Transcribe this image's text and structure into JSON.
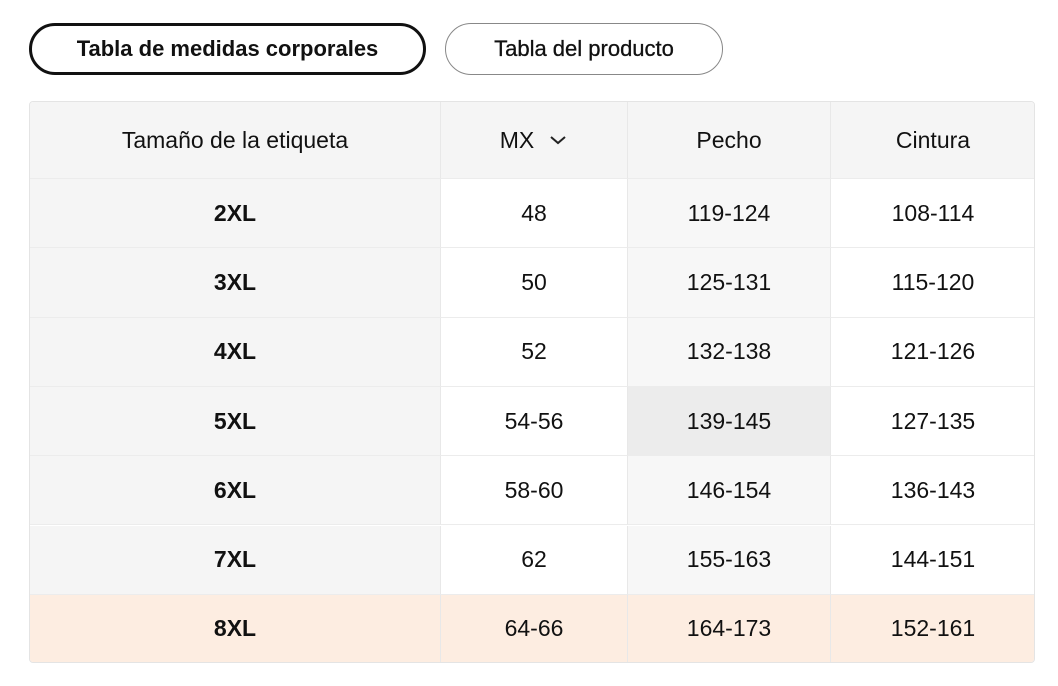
{
  "tabs": [
    "Tabla de medidas corporales",
    "Tabla del producto"
  ],
  "table": {
    "headers": [
      "Tamaño de la etiqueta",
      "MX",
      "Pecho",
      "Cintura"
    ],
    "rows": [
      [
        "2XL",
        "48",
        "119-124",
        "108-114"
      ],
      [
        "3XL",
        "50",
        "125-131",
        "115-120"
      ],
      [
        "4XL",
        "52",
        "132-138",
        "121-126"
      ],
      [
        "5XL",
        "54-56",
        "139-145",
        "127-135"
      ],
      [
        "6XL",
        "58-60",
        "146-154",
        "136-143"
      ],
      [
        "7XL",
        "62",
        "155-163",
        "144-151"
      ],
      [
        "8XL",
        "64-66",
        "164-173",
        "152-161"
      ]
    ]
  }
}
